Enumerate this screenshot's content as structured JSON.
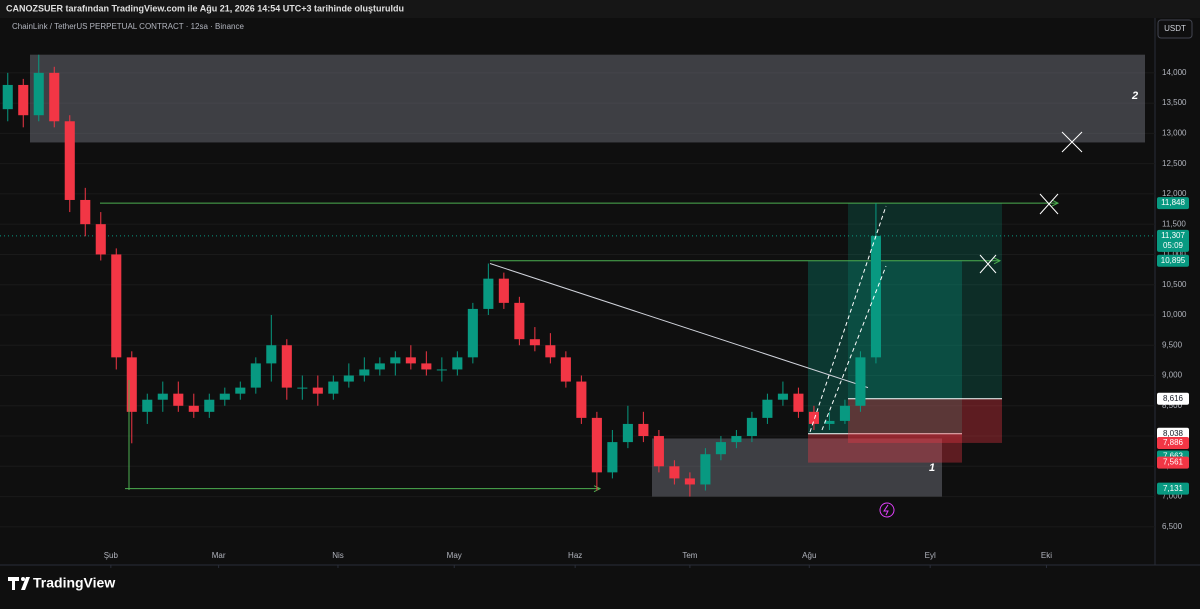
{
  "header": {
    "caption": "CANOZSUER tarafından TradingView.com ile Ağu 21, 2026 14:54 UTC+3 tarihinde oluşturuldu"
  },
  "footer": {
    "brand": "TradingView"
  },
  "chart_data": {
    "type": "candlestick",
    "title": "ChainLink / TetherUS PERPETUAL CONTRACT · 12sa · Binance",
    "currency": "USDT",
    "x": [
      0,
      1,
      2,
      3,
      4,
      5,
      6,
      7,
      8,
      9,
      10,
      11,
      12,
      13,
      14,
      15,
      16,
      17,
      18,
      19,
      20,
      21,
      22,
      23,
      24,
      25,
      26,
      27,
      28,
      29,
      30,
      31,
      32,
      33,
      34,
      35,
      36,
      37,
      38,
      39,
      40,
      41,
      42,
      43,
      44,
      45,
      46,
      47,
      48,
      49,
      50,
      51,
      52,
      53,
      54,
      55,
      56
    ],
    "open": [
      13400,
      13800,
      13300,
      14000,
      13200,
      11900,
      11500,
      11000,
      9300,
      8400,
      8600,
      8700,
      8500,
      8400,
      8600,
      8700,
      8800,
      9200,
      9500,
      8800,
      8800,
      8700,
      8900,
      9000,
      9100,
      9200,
      9300,
      9200,
      9100,
      9100,
      9300,
      10100,
      10600,
      10200,
      9600,
      9500,
      9300,
      8900,
      8300,
      7400,
      7900,
      8200,
      8000,
      7500,
      7300,
      7200,
      7700,
      7900,
      8000,
      8300,
      8600,
      8700,
      8400,
      8200,
      8250,
      8500,
      9300
    ],
    "high": [
      14000,
      13900,
      14300,
      14100,
      13300,
      12100,
      11700,
      11100,
      9400,
      8700,
      8900,
      8900,
      8700,
      8700,
      8800,
      8900,
      9300,
      10000,
      9600,
      9000,
      9000,
      9000,
      9200,
      9300,
      9300,
      9400,
      9500,
      9400,
      9300,
      9400,
      10200,
      10850,
      10700,
      10300,
      9800,
      9700,
      9400,
      9000,
      8400,
      8100,
      8500,
      8400,
      8100,
      7600,
      7400,
      7800,
      8000,
      8100,
      8400,
      8700,
      8900,
      8800,
      8500,
      8400,
      8600,
      9400,
      11848
    ],
    "low": [
      13200,
      13100,
      13200,
      13100,
      11700,
      11300,
      10900,
      9100,
      7880,
      8200,
      8400,
      8400,
      8300,
      8300,
      8500,
      8600,
      8700,
      8900,
      8600,
      8600,
      8500,
      8600,
      8800,
      8900,
      9000,
      9000,
      9100,
      9000,
      8900,
      9000,
      9200,
      10000,
      10100,
      9500,
      9400,
      9200,
      8800,
      8200,
      7100,
      7300,
      7800,
      7900,
      7400,
      7200,
      7000,
      7100,
      7600,
      7800,
      7900,
      8200,
      8500,
      8300,
      8100,
      8100,
      8200,
      8400,
      9200
    ],
    "close": [
      13800,
      13300,
      14000,
      13200,
      11900,
      11500,
      11000,
      9300,
      8400,
      8600,
      8700,
      8500,
      8400,
      8600,
      8700,
      8800,
      9200,
      9500,
      8800,
      8800,
      8700,
      8900,
      9000,
      9100,
      9200,
      9300,
      9200,
      9100,
      9100,
      9300,
      10100,
      10600,
      10200,
      9600,
      9500,
      9300,
      8900,
      8300,
      7400,
      7900,
      8200,
      8000,
      7500,
      7300,
      7200,
      7700,
      7900,
      8000,
      8300,
      8600,
      8700,
      8400,
      8200,
      8250,
      8500,
      9300,
      11307
    ],
    "up_color": "#089981",
    "down_color": "#f23645",
    "xlim": [
      -0.5,
      74
    ],
    "xticks": [
      {
        "value": 6.65,
        "label": "Şub"
      },
      {
        "value": 13.6,
        "label": "Mar"
      },
      {
        "value": 21.3,
        "label": "Nis"
      },
      {
        "value": 28.8,
        "label": "May"
      },
      {
        "value": 36.6,
        "label": "Haz"
      },
      {
        "value": 44,
        "label": "Tem"
      },
      {
        "value": 51.7,
        "label": "Ağu"
      },
      {
        "value": 59.5,
        "label": "Eyl"
      },
      {
        "value": 67,
        "label": "Eki"
      }
    ],
    "ylim": [
      6200,
      14460
    ],
    "yticks": [
      {
        "value": 6500,
        "label": "6,500"
      },
      {
        "value": 7000,
        "label": "7,000"
      },
      {
        "value": 7500,
        "label": "7,500"
      },
      {
        "value": 8000,
        "label": "8,000"
      },
      {
        "value": 8500,
        "label": "8,500"
      },
      {
        "value": 9000,
        "label": "9,000"
      },
      {
        "value": 9500,
        "label": "9,500"
      },
      {
        "value": 10000,
        "label": "10,000"
      },
      {
        "value": 10500,
        "label": "10,500"
      },
      {
        "value": 11000,
        "label": "11,000"
      },
      {
        "value": 11500,
        "label": "11,500"
      },
      {
        "value": 12000,
        "label": "12,000"
      },
      {
        "value": 12500,
        "label": "12,500"
      },
      {
        "value": 13000,
        "label": "13,000"
      },
      {
        "value": 13500,
        "label": "13,500"
      },
      {
        "value": 14000,
        "label": "14,000"
      }
    ],
    "zones": [
      {
        "top": 14300,
        "bottom": 12850,
        "label": "2"
      },
      {
        "top": 7960,
        "bottom": 7000,
        "label": "1"
      }
    ],
    "levels": [
      11848,
      10895,
      7131
    ],
    "trendline": [
      10850,
      8800
    ],
    "position_tools": [
      {
        "target": 10895,
        "entry": 8038,
        "stop": 7561
      },
      {
        "target": 11848,
        "entry": 8616,
        "stop": 7886
      }
    ],
    "current_price": {
      "value": 11307,
      "label": "11,307",
      "countdown": "05:09"
    },
    "price_labels": [
      {
        "value": 11848,
        "label": "11,848",
        "color": "#089981"
      },
      {
        "value": 10895,
        "label": "10,895",
        "color": "#089981"
      },
      {
        "value": 8616,
        "label": "8,616",
        "color": "#ffffff"
      },
      {
        "value": 8038,
        "label": "8,038",
        "color": "#ffffff"
      },
      {
        "value": 7886,
        "label": "7,886",
        "color": "#f23645"
      },
      {
        "value": 7663,
        "label": "7,663",
        "color": "#089981"
      },
      {
        "value": 7561,
        "label": "7,561",
        "color": "#f23645"
      },
      {
        "value": 7131,
        "label": "7,131",
        "color": "#089981"
      }
    ]
  }
}
